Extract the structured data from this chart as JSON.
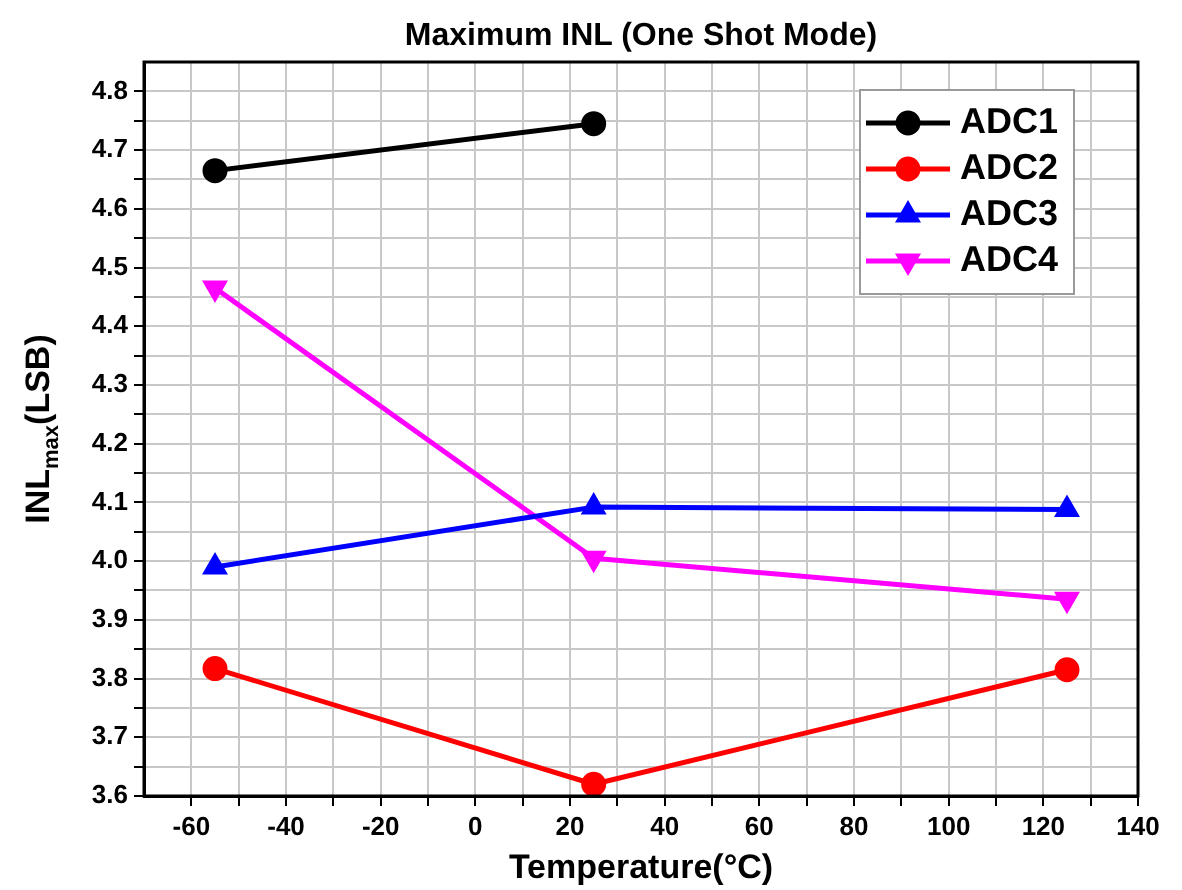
{
  "chart_data": {
    "type": "line",
    "title": "Maximum INL (One Shot Mode)",
    "xlabel": "Temperature(°C)",
    "ylabel": "INL$_{max}$(LSB)",
    "x": [
      -55,
      25,
      125
    ],
    "series": [
      {
        "name": "ADC1",
        "color": "#000000",
        "marker": "circle",
        "values": [
          4.665,
          4.745,
          null
        ]
      },
      {
        "name": "ADC2",
        "color": "#ff0000",
        "marker": "circle",
        "values": [
          3.817,
          3.62,
          3.815
        ]
      },
      {
        "name": "ADC3",
        "color": "#0000ff",
        "marker": "triangle",
        "values": [
          3.99,
          4.092,
          4.088
        ]
      },
      {
        "name": "ADC4",
        "color": "#ff00ff",
        "marker": "triangle-down",
        "values": [
          4.465,
          4.005,
          3.935
        ]
      }
    ],
    "xlim": [
      -70,
      140
    ],
    "ylim": [
      3.6,
      4.85
    ],
    "xticks": [
      -60,
      {
        "value": -50,
        "label": null
      },
      -40,
      {
        "value": -30,
        "label": null
      },
      -20,
      {
        "value": -10,
        "label": null
      },
      0,
      {
        "value": 10,
        "label": null
      },
      20,
      {
        "value": 30,
        "label": null
      },
      40,
      {
        "value": 50,
        "label": null
      },
      60,
      {
        "value": 70,
        "label": null
      },
      80,
      {
        "value": 90,
        "label": null
      },
      100,
      {
        "value": 110,
        "label": null
      },
      120,
      {
        "value": 130,
        "label": null
      },
      140
    ],
    "yticks": [
      {
        "value": 3.6,
        "label": "3.6"
      },
      {
        "value": 3.65,
        "label": null
      },
      {
        "value": 3.7,
        "label": "3.7"
      },
      {
        "value": 3.75,
        "label": null
      },
      {
        "value": 3.8,
        "label": "3.8"
      },
      {
        "value": 3.85,
        "label": null
      },
      {
        "value": 3.9,
        "label": "3.9"
      },
      {
        "value": 3.95,
        "label": null
      },
      {
        "value": 4.0,
        "label": "4.0"
      },
      {
        "value": 4.05,
        "label": null
      },
      {
        "value": 4.1,
        "label": "4.1"
      },
      {
        "value": 4.15,
        "label": null
      },
      {
        "value": 4.2,
        "label": "4.2"
      },
      {
        "value": 4.25,
        "label": null
      },
      {
        "value": 4.3,
        "label": "4.3"
      },
      {
        "value": 4.35,
        "label": null
      },
      {
        "value": 4.4,
        "label": "4.4"
      },
      {
        "value": 4.45,
        "label": null
      },
      {
        "value": 4.5,
        "label": "4.5"
      },
      {
        "value": 4.55,
        "label": null
      },
      {
        "value": 4.6,
        "label": "4.6"
      },
      {
        "value": 4.65,
        "label": null
      },
      {
        "value": 4.7,
        "label": "4.7"
      },
      {
        "value": 4.75,
        "label": null
      },
      {
        "value": 4.8,
        "label": "4.8"
      }
    ],
    "grid": true,
    "legend": "top right",
    "line_style": "solid"
  }
}
